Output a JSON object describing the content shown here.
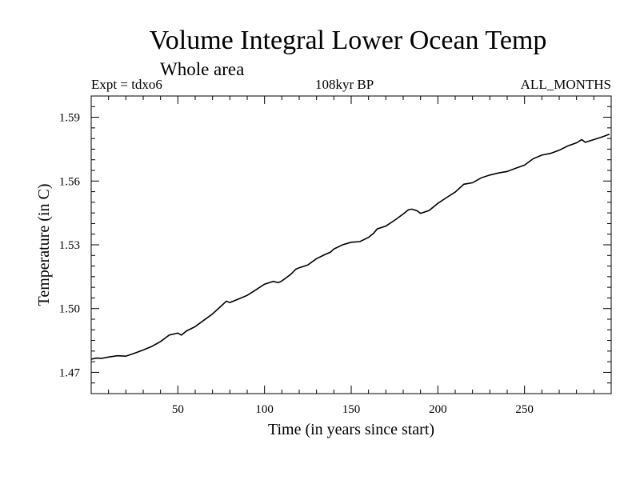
{
  "chart_data": {
    "type": "line",
    "title": "Volume Integral Lower Ocean Temp",
    "subtitle": "Whole area",
    "annotations": {
      "left": "Expt = tdxo6",
      "center": "108kyr BP",
      "right": "ALL_MONTHS"
    },
    "xlabel": "Time (in years since start)",
    "ylabel": "Temperature (in C)",
    "xlim": [
      0,
      300
    ],
    "ylim": [
      1.46,
      1.6
    ],
    "x_ticks": [
      50,
      100,
      150,
      200,
      250
    ],
    "y_ticks": [
      "1.47",
      "1.50",
      "1.53",
      "1.56",
      "1.59"
    ],
    "grid": false,
    "series": [
      {
        "x": [
          0,
          3,
          6,
          10,
          15,
          20,
          25,
          30,
          35,
          40,
          45,
          50,
          52,
          55,
          60,
          65,
          70,
          75,
          78,
          80,
          85,
          90,
          95,
          100,
          105,
          108,
          110,
          115,
          118,
          120,
          125,
          130,
          135,
          138,
          140,
          145,
          150,
          155,
          160,
          163,
          165,
          170,
          175,
          180,
          183,
          185,
          188,
          190,
          195,
          200,
          205,
          210,
          215,
          220,
          225,
          230,
          235,
          240,
          245,
          250,
          255,
          260,
          265,
          270,
          275,
          280,
          283,
          285,
          290,
          295,
          299
        ],
        "y": [
          1.4762,
          1.4767,
          1.4766,
          1.4772,
          1.4778,
          1.4776,
          1.479,
          1.4805,
          1.4822,
          1.4845,
          1.4875,
          1.4885,
          1.4875,
          1.4895,
          1.4915,
          1.4945,
          1.4975,
          1.5012,
          1.5035,
          1.5028,
          1.5045,
          1.5062,
          1.5088,
          1.5115,
          1.5128,
          1.5122,
          1.513,
          1.516,
          1.5185,
          1.5192,
          1.5205,
          1.5235,
          1.5255,
          1.5265,
          1.528,
          1.53,
          1.5312,
          1.5315,
          1.5335,
          1.5355,
          1.5375,
          1.5388,
          1.5415,
          1.5445,
          1.5465,
          1.5468,
          1.546,
          1.5448,
          1.5462,
          1.5495,
          1.5522,
          1.5548,
          1.5585,
          1.5592,
          1.5615,
          1.5628,
          1.5638,
          1.5645,
          1.566,
          1.5675,
          1.5705,
          1.5722,
          1.573,
          1.5745,
          1.5765,
          1.578,
          1.5795,
          1.5782,
          1.5795,
          1.5808,
          1.582
        ]
      }
    ]
  }
}
